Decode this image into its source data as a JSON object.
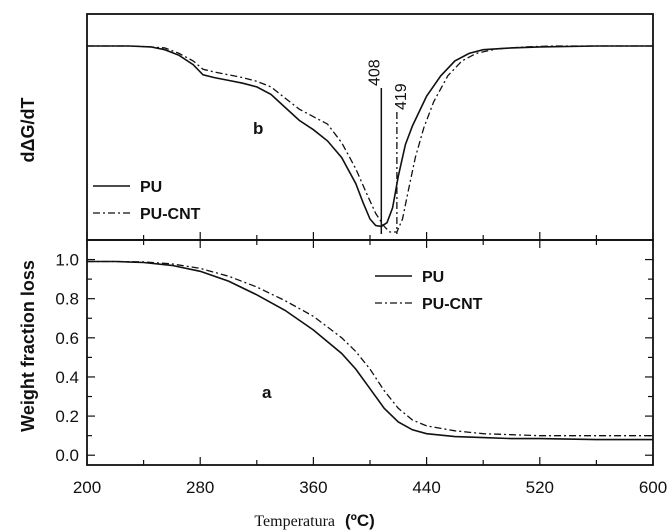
{
  "chart_data": [
    {
      "panel": "top",
      "type": "line",
      "panel_label": "b",
      "ylabel": "dΔG/dT",
      "xlim": [
        200,
        600
      ],
      "legend": "bottom-left",
      "peak_labels": [
        "408",
        "419"
      ],
      "peaks": [
        408,
        419
      ],
      "series": [
        {
          "name": "PU",
          "style": "solid",
          "x": [
            200,
            230,
            245,
            255,
            265,
            275,
            282,
            290,
            300,
            310,
            320,
            330,
            340,
            350,
            360,
            370,
            380,
            390,
            395,
            400,
            404,
            408,
            412,
            416,
            420,
            425,
            430,
            440,
            450,
            460,
            470,
            480,
            500,
            520,
            560,
            600
          ],
          "y": [
            1.0,
            1.0,
            0.995,
            0.98,
            0.95,
            0.9,
            0.845,
            0.83,
            0.815,
            0.8,
            0.78,
            0.74,
            0.67,
            0.6,
            0.55,
            0.49,
            0.4,
            0.26,
            0.16,
            0.07,
            0.035,
            0.03,
            0.05,
            0.13,
            0.3,
            0.47,
            0.57,
            0.73,
            0.84,
            0.92,
            0.96,
            0.98,
            0.99,
            0.995,
            1.0,
            1.0
          ]
        },
        {
          "name": "PU-CNT",
          "style": "dashdot",
          "x": [
            200,
            230,
            245,
            255,
            265,
            275,
            282,
            290,
            300,
            310,
            320,
            330,
            340,
            350,
            360,
            370,
            380,
            390,
            398,
            404,
            410,
            414,
            419,
            423,
            427,
            432,
            438,
            445,
            455,
            465,
            475,
            490,
            510,
            530,
            560,
            600
          ],
          "y": [
            1.0,
            1.0,
            0.995,
            0.99,
            0.96,
            0.92,
            0.875,
            0.86,
            0.845,
            0.83,
            0.81,
            0.78,
            0.72,
            0.66,
            0.62,
            0.58,
            0.48,
            0.34,
            0.2,
            0.1,
            0.03,
            0.0,
            0.0,
            0.07,
            0.22,
            0.4,
            0.56,
            0.7,
            0.84,
            0.92,
            0.96,
            0.985,
            0.995,
            1.0,
            1.0,
            1.0
          ]
        }
      ]
    },
    {
      "panel": "bottom",
      "type": "line",
      "panel_label": "a",
      "ylabel": "Weight fraction loss",
      "xlabel_word": "Temperatura",
      "xlabel_unit": "(ºC)",
      "xlim": [
        200,
        600
      ],
      "ylim": [
        -0.05,
        1.1
      ],
      "xticks": [
        "200",
        "280",
        "360",
        "440",
        "520",
        "600"
      ],
      "yticks": [
        "0.0",
        "0.2",
        "0.4",
        "0.6",
        "0.8",
        "1.0"
      ],
      "legend": "top-right",
      "series": [
        {
          "name": "PU",
          "style": "solid",
          "x": [
            200,
            220,
            240,
            260,
            280,
            300,
            320,
            340,
            360,
            380,
            390,
            400,
            410,
            420,
            430,
            440,
            460,
            480,
            500,
            520,
            560,
            600
          ],
          "y": [
            0.99,
            0.99,
            0.985,
            0.97,
            0.94,
            0.89,
            0.82,
            0.74,
            0.64,
            0.52,
            0.44,
            0.34,
            0.24,
            0.17,
            0.13,
            0.11,
            0.095,
            0.09,
            0.085,
            0.085,
            0.08,
            0.08
          ]
        },
        {
          "name": "PU-CNT",
          "style": "dashdot",
          "x": [
            200,
            220,
            240,
            260,
            280,
            300,
            320,
            340,
            360,
            380,
            390,
            400,
            410,
            420,
            430,
            440,
            460,
            480,
            500,
            520,
            560,
            600
          ],
          "y": [
            0.99,
            0.99,
            0.988,
            0.978,
            0.955,
            0.915,
            0.86,
            0.79,
            0.71,
            0.6,
            0.53,
            0.44,
            0.33,
            0.24,
            0.18,
            0.15,
            0.125,
            0.11,
            0.105,
            0.1,
            0.1,
            0.1
          ]
        }
      ]
    }
  ]
}
